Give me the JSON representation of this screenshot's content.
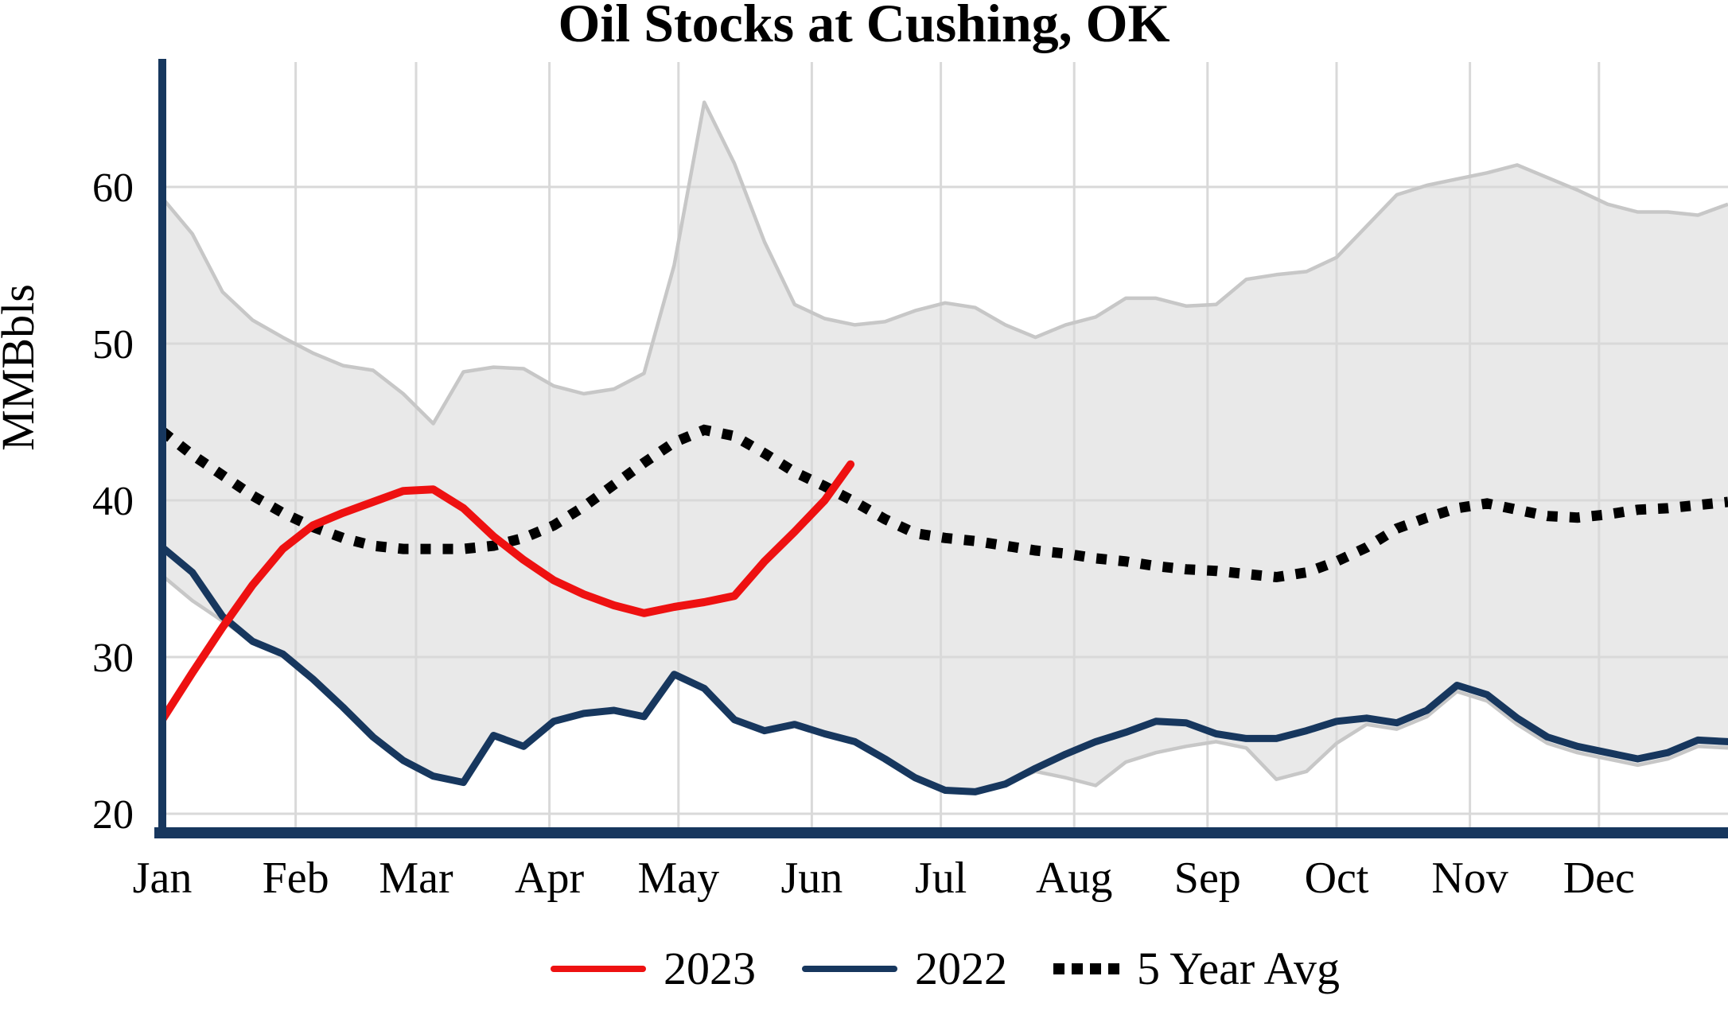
{
  "title": "Oil Stocks at Cushing, OK",
  "colors": {
    "red_2023": "#ee1111",
    "navy_2022": "#17375e",
    "five_year_avg": "#000000",
    "band_fill": "#e9e9e9",
    "band_edge": "#c7c7c7",
    "gridline": "#d9d9d9",
    "axis": "#17375e",
    "text": "#000000"
  },
  "chart_data": {
    "type": "line",
    "title": "Oil Stocks at Cushing, OK",
    "xlabel": "",
    "ylabel": "MMBbls",
    "ylim": [
      18.6,
      68.0
    ],
    "xlim_days": [
      0,
      364
    ],
    "grid": "on",
    "legend_position": "bottom",
    "yticks": [
      20,
      30,
      40,
      50,
      60
    ],
    "months": [
      "Jan",
      "Feb",
      "Mar",
      "Apr",
      "May",
      "Jun",
      "Jul",
      "Aug",
      "Sep",
      "Oct",
      "Nov",
      "Dec"
    ],
    "band": {
      "name": "5-year range",
      "x_days": [
        0,
        7,
        14,
        21,
        28,
        35,
        42,
        49,
        56,
        63,
        70,
        77,
        84,
        91,
        98,
        105,
        112,
        119,
        126,
        133,
        140,
        147,
        154,
        161,
        168,
        175,
        182,
        189,
        196,
        203,
        210,
        217,
        224,
        231,
        238,
        245,
        252,
        259,
        266,
        273,
        280,
        287,
        294,
        301,
        308,
        315,
        322,
        329,
        336,
        343,
        350,
        357,
        364
      ],
      "upper": [
        59.3,
        57.0,
        53.3,
        51.5,
        50.4,
        49.4,
        48.6,
        48.3,
        46.8,
        44.9,
        48.2,
        48.5,
        48.4,
        47.3,
        46.8,
        47.1,
        48.1,
        55.0,
        65.4,
        61.5,
        56.5,
        52.5,
        51.6,
        51.2,
        51.4,
        52.1,
        52.6,
        52.3,
        51.2,
        50.4,
        51.2,
        51.7,
        52.9,
        52.9,
        52.4,
        52.5,
        54.1,
        54.4,
        54.6,
        55.5,
        57.5,
        59.5,
        60.1,
        60.5,
        60.9,
        61.4,
        60.6,
        59.8,
        58.9,
        58.4,
        58.4,
        58.2,
        58.9
      ],
      "lower": [
        35.2,
        33.6,
        32.3,
        31.0,
        30.2,
        28.6,
        26.8,
        24.9,
        23.4,
        22.4,
        22.0,
        25.0,
        24.3,
        25.9,
        26.4,
        26.6,
        26.2,
        28.9,
        28.0,
        26.0,
        25.3,
        25.7,
        25.1,
        24.6,
        23.5,
        22.3,
        21.5,
        21.4,
        21.9,
        22.7,
        22.3,
        21.8,
        23.3,
        23.9,
        24.3,
        24.6,
        24.2,
        22.2,
        22.7,
        24.5,
        25.7,
        25.4,
        26.2,
        27.8,
        27.2,
        25.7,
        24.5,
        23.9,
        23.5,
        23.1,
        23.5,
        24.3,
        24.2
      ]
    },
    "series": [
      {
        "name": "2023",
        "color": "#ee1111",
        "style": "solid",
        "x_days": [
          0,
          7,
          14,
          21,
          28,
          35,
          42,
          49,
          56,
          63,
          70,
          77,
          84,
          91,
          98,
          105,
          112,
          119,
          126,
          133,
          140,
          147,
          154,
          160
        ],
        "values": [
          26.0,
          29.0,
          31.9,
          34.6,
          36.9,
          38.4,
          39.2,
          39.9,
          40.6,
          40.7,
          39.5,
          37.7,
          36.2,
          34.9,
          34.0,
          33.3,
          32.8,
          33.2,
          33.5,
          33.9,
          36.1,
          38.0,
          40.0,
          42.3
        ]
      },
      {
        "name": "2022",
        "color": "#17375e",
        "style": "solid",
        "x_days": [
          0,
          7,
          14,
          21,
          28,
          35,
          42,
          49,
          56,
          63,
          70,
          77,
          84,
          91,
          98,
          105,
          112,
          119,
          126,
          133,
          140,
          147,
          154,
          161,
          168,
          175,
          182,
          189,
          196,
          203,
          210,
          217,
          224,
          231,
          238,
          245,
          252,
          259,
          266,
          273,
          280,
          287,
          294,
          301,
          308,
          315,
          322,
          329,
          336,
          343,
          350,
          357,
          364
        ],
        "values": [
          37.0,
          35.4,
          32.6,
          31.0,
          30.2,
          28.6,
          26.8,
          24.9,
          23.4,
          22.4,
          22.0,
          25.0,
          24.3,
          25.9,
          26.4,
          26.6,
          26.2,
          28.9,
          28.0,
          26.0,
          25.3,
          25.7,
          25.1,
          24.6,
          23.5,
          22.3,
          21.5,
          21.4,
          21.9,
          22.9,
          23.8,
          24.6,
          25.2,
          25.9,
          25.8,
          25.1,
          24.8,
          24.8,
          25.3,
          25.9,
          26.1,
          25.8,
          26.6,
          28.2,
          27.6,
          26.1,
          24.9,
          24.3,
          23.9,
          23.5,
          23.9,
          24.7,
          24.6
        ]
      },
      {
        "name": "5 Year Avg",
        "color": "#000000",
        "style": "dotted",
        "x_days": [
          0,
          7,
          14,
          21,
          28,
          35,
          42,
          49,
          56,
          63,
          70,
          77,
          84,
          91,
          98,
          105,
          112,
          119,
          126,
          133,
          140,
          147,
          154,
          161,
          168,
          175,
          182,
          189,
          196,
          203,
          210,
          217,
          224,
          231,
          238,
          245,
          252,
          259,
          266,
          273,
          280,
          287,
          294,
          301,
          308,
          315,
          322,
          329,
          336,
          343,
          350,
          357,
          364
        ],
        "values": [
          44.4,
          42.9,
          41.6,
          40.3,
          39.2,
          38.3,
          37.6,
          37.1,
          36.9,
          36.9,
          36.9,
          37.1,
          37.6,
          38.4,
          39.6,
          41.0,
          42.4,
          43.7,
          44.5,
          44.1,
          43.0,
          41.8,
          40.9,
          39.9,
          38.8,
          37.9,
          37.6,
          37.4,
          37.1,
          36.8,
          36.6,
          36.3,
          36.1,
          35.8,
          35.6,
          35.5,
          35.3,
          35.1,
          35.4,
          36.1,
          37.0,
          38.2,
          38.9,
          39.5,
          39.8,
          39.4,
          39.0,
          38.9,
          39.1,
          39.4,
          39.5,
          39.7,
          39.9
        ]
      }
    ]
  },
  "legend": {
    "items": [
      {
        "label": "2023",
        "color": "#ee1111",
        "style": "solid"
      },
      {
        "label": "2022",
        "color": "#17375e",
        "style": "solid"
      },
      {
        "label": "5 Year Avg",
        "color": "#000000",
        "style": "dotted"
      }
    ]
  }
}
